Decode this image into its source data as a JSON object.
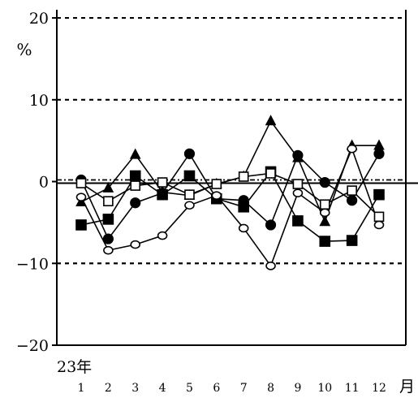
{
  "chart_data": {
    "type": "line",
    "title": "",
    "xlabel": "",
    "ylabel": "",
    "y_unit": "%",
    "x_unit": "月",
    "year_label": "23年",
    "categories": [
      "1",
      "2",
      "3",
      "4",
      "5",
      "6",
      "7",
      "8",
      "9",
      "10",
      "11",
      "12"
    ],
    "ylim": [
      -20,
      21
    ],
    "y_ticks": [
      20,
      10,
      0,
      -10,
      -20
    ],
    "y_tick_labels": [
      "20",
      "10",
      "0",
      "−10",
      "−20"
    ],
    "grid": "dashed lines at 10, 0 (dash-dot), -10, 20",
    "legend": "none",
    "series": [
      {
        "marker": "filled-triangle",
        "values": [
          -2.5,
          -0.8,
          3.3,
          -1.3,
          -1.7,
          -0.3,
          0.6,
          7.4,
          2.9,
          -4.9,
          4.4,
          4.4
        ]
      },
      {
        "marker": "filled-circle",
        "values": [
          0.2,
          -7.0,
          -2.6,
          -1.4,
          3.4,
          -2.1,
          -2.3,
          -5.3,
          3.2,
          -0.1,
          -2.3,
          3.4
        ]
      },
      {
        "marker": "filled-square",
        "values": [
          -5.3,
          -4.6,
          0.7,
          -1.6,
          0.7,
          -2.1,
          -3.1,
          1.2,
          -4.8,
          -7.3,
          -7.2,
          -1.6
        ]
      },
      {
        "marker": "open-square",
        "values": [
          -0.2,
          -2.4,
          -0.5,
          -0.1,
          -1.6,
          -0.3,
          0.6,
          1.0,
          -0.3,
          -2.8,
          -1.1,
          -4.3
        ]
      },
      {
        "marker": "open-circle",
        "values": [
          -1.9,
          -8.4,
          -7.7,
          -6.6,
          -2.9,
          -1.7,
          -5.7,
          -10.3,
          -1.4,
          -3.8,
          4.0,
          -5.3
        ]
      }
    ]
  }
}
